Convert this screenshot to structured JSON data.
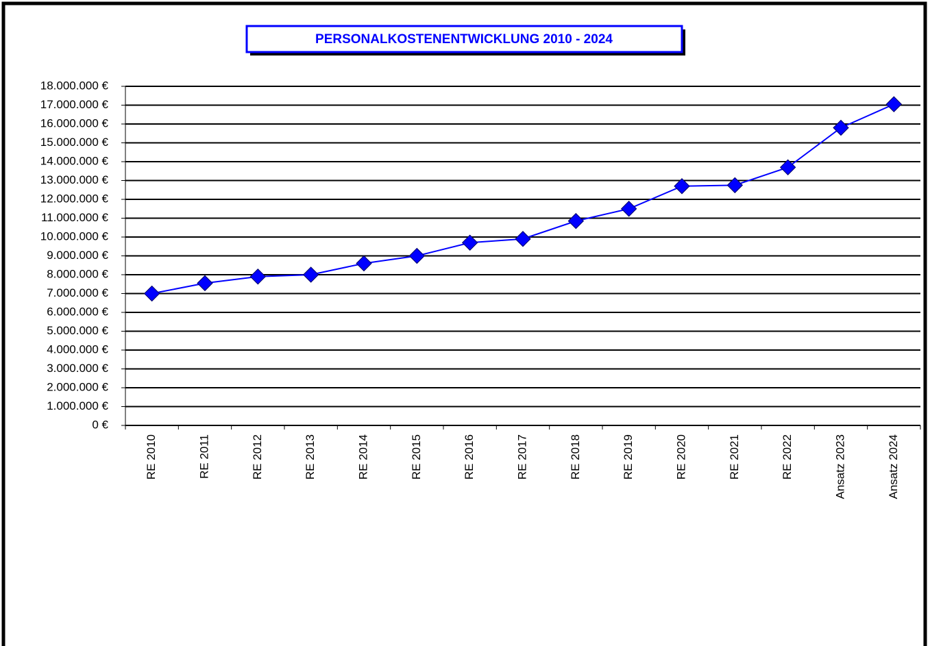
{
  "chart_data": {
    "type": "line",
    "title": "PERSONALKOSTENENTWICKLUNG 2010 -  2024",
    "categories": [
      "RE 2010",
      "RE 2011",
      "RE 2012",
      "RE 2013",
      "RE 2014",
      "RE 2015",
      "RE 2016",
      "RE 2017",
      "RE 2018",
      "RE 2019",
      "RE 2020",
      "RE 2021",
      "RE 2022",
      "Ansatz 2023",
      "Ansatz 2024"
    ],
    "series": [
      {
        "color": "#0000ff",
        "values": [
          7000000,
          7550000,
          7900000,
          8000000,
          8600000,
          9000000,
          9700000,
          9900000,
          10850000,
          11500000,
          12700000,
          12750000,
          13700000,
          15800000,
          17050000
        ]
      }
    ],
    "ylim": [
      0,
      18000000
    ],
    "yticks": [
      {
        "value": 0,
        "label": "0 €"
      },
      {
        "value": 1000000,
        "label": "1.000.000 €"
      },
      {
        "value": 2000000,
        "label": "2.000.000 €"
      },
      {
        "value": 3000000,
        "label": "3.000.000 €"
      },
      {
        "value": 4000000,
        "label": "4.000.000 €"
      },
      {
        "value": 5000000,
        "label": "5.000.000 €"
      },
      {
        "value": 6000000,
        "label": "6.000.000 €"
      },
      {
        "value": 7000000,
        "label": "7.000.000 €"
      },
      {
        "value": 8000000,
        "label": "8.000.000 €"
      },
      {
        "value": 9000000,
        "label": "9.000.000 €"
      },
      {
        "value": 10000000,
        "label": "10.000.000 €"
      },
      {
        "value": 11000000,
        "label": "11.000.000 €"
      },
      {
        "value": 12000000,
        "label": "12.000.000 €"
      },
      {
        "value": 13000000,
        "label": "13.000.000 €"
      },
      {
        "value": 14000000,
        "label": "14.000.000 €"
      },
      {
        "value": 15000000,
        "label": "15.000.000 €"
      },
      {
        "value": 16000000,
        "label": "16.000.000 €"
      },
      {
        "value": 17000000,
        "label": "17.000.000 €"
      },
      {
        "value": 18000000,
        "label": "18.000.000 €"
      }
    ],
    "grid": true
  }
}
